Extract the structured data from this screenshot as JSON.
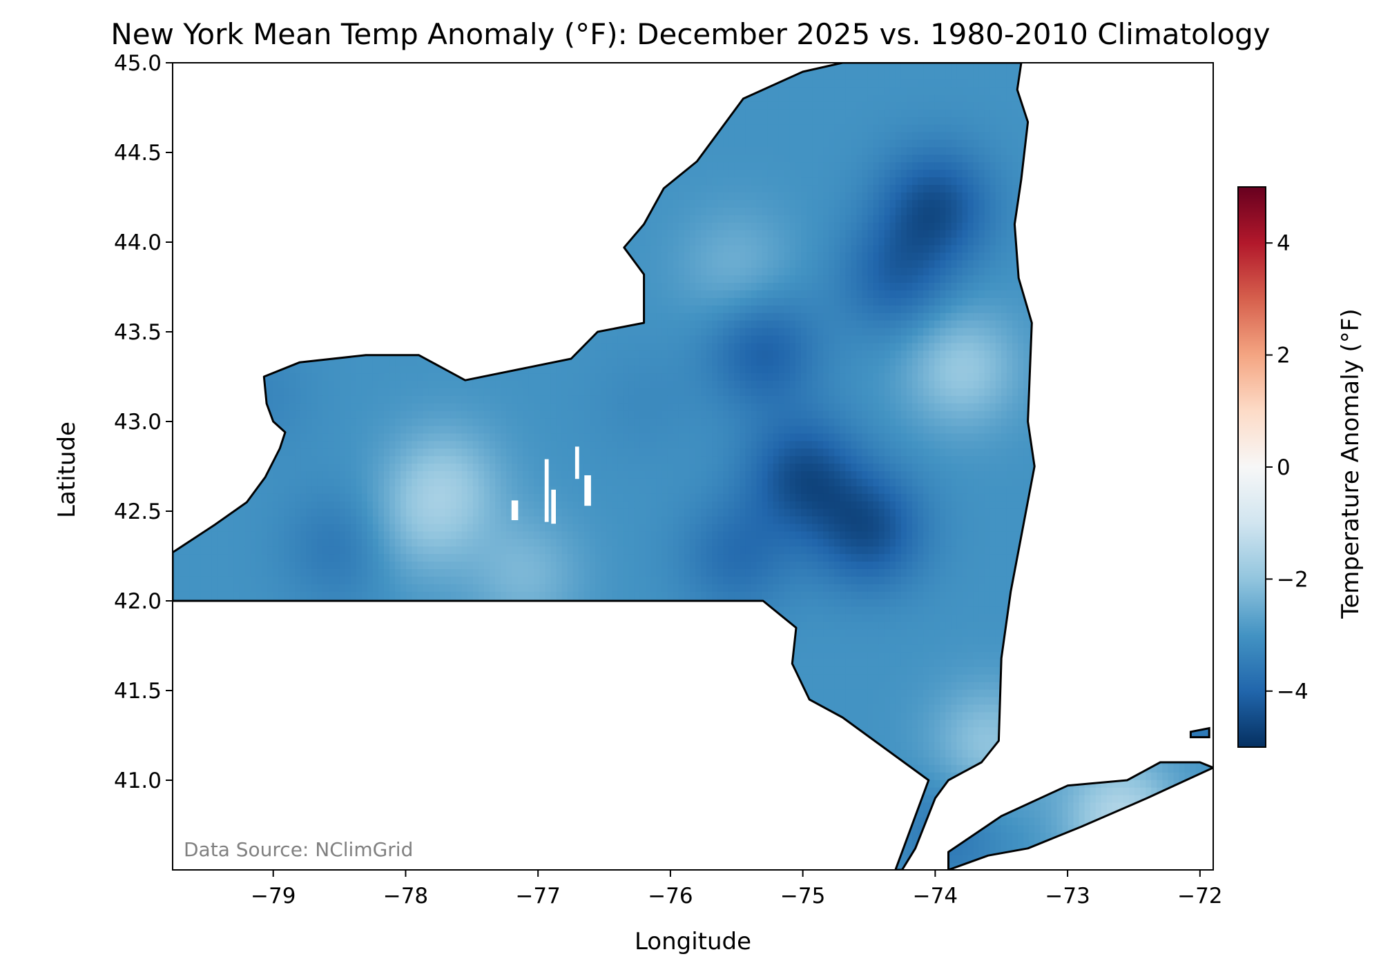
{
  "chart_data": {
    "type": "heatmap",
    "title": "New York Mean Temp Anomaly (°F): December 2025 vs. 1980-2010 Climatology",
    "xlabel": "Longitude",
    "ylabel": "Latitude",
    "xlim": [
      -79.76,
      -71.9
    ],
    "ylim": [
      40.5,
      45.0
    ],
    "x_ticks": [
      {
        "value": -79,
        "label": "−79"
      },
      {
        "value": -78,
        "label": "−78"
      },
      {
        "value": -77,
        "label": "−77"
      },
      {
        "value": -76,
        "label": "−76"
      },
      {
        "value": -75,
        "label": "−75"
      },
      {
        "value": -74,
        "label": "−74"
      },
      {
        "value": -73,
        "label": "−73"
      },
      {
        "value": -72,
        "label": "−72"
      }
    ],
    "y_ticks": [
      {
        "value": 45.0,
        "label": "45.0"
      },
      {
        "value": 44.5,
        "label": "44.5"
      },
      {
        "value": 44.0,
        "label": "44.0"
      },
      {
        "value": 43.5,
        "label": "43.5"
      },
      {
        "value": 43.0,
        "label": "43.0"
      },
      {
        "value": 42.5,
        "label": "42.5"
      },
      {
        "value": 42.0,
        "label": "42.0"
      },
      {
        "value": 41.5,
        "label": "41.5"
      },
      {
        "value": 41.0,
        "label": "41.0"
      }
    ],
    "colorbar": {
      "label": "Temperature Anomaly (°F)",
      "range": [
        -5,
        5
      ],
      "colormap": "RdBu_r",
      "ticks": [
        {
          "value": 4,
          "label": "4"
        },
        {
          "value": 2,
          "label": "2"
        },
        {
          "value": 0,
          "label": "0"
        },
        {
          "value": -2,
          "label": "−2"
        },
        {
          "value": -4,
          "label": "−4"
        }
      ]
    },
    "base_anomaly": -3.0,
    "anomaly_features": [
      {
        "lon": -74.0,
        "lat": 44.2,
        "value": -4.4
      },
      {
        "lon": -74.3,
        "lat": 43.8,
        "value": -4.0
      },
      {
        "lon": -75.3,
        "lat": 43.4,
        "value": -4.1
      },
      {
        "lon": -75.0,
        "lat": 42.7,
        "value": -4.4
      },
      {
        "lon": -74.5,
        "lat": 42.4,
        "value": -4.4
      },
      {
        "lon": -75.5,
        "lat": 42.25,
        "value": -3.8
      },
      {
        "lon": -78.5,
        "lat": 42.3,
        "value": -3.6
      },
      {
        "lon": -77.7,
        "lat": 42.65,
        "value": -2.0
      },
      {
        "lon": -77.9,
        "lat": 42.4,
        "value": -2.4
      },
      {
        "lon": -77.1,
        "lat": 42.15,
        "value": -2.3
      },
      {
        "lon": -73.8,
        "lat": 43.3,
        "value": -1.9
      },
      {
        "lon": -75.5,
        "lat": 43.85,
        "value": -2.4
      },
      {
        "lon": -73.6,
        "lat": 41.2,
        "value": -2.0
      },
      {
        "lon": -72.6,
        "lat": 40.8,
        "value": -1.5
      },
      {
        "lon": -73.9,
        "lat": 40.7,
        "value": -3.6
      },
      {
        "lon": -76.2,
        "lat": 43.1,
        "value": -3.2
      },
      {
        "lon": -79.1,
        "lat": 43.15,
        "value": -3.3
      }
    ],
    "annotation": "Data Source: NClimGrid"
  }
}
